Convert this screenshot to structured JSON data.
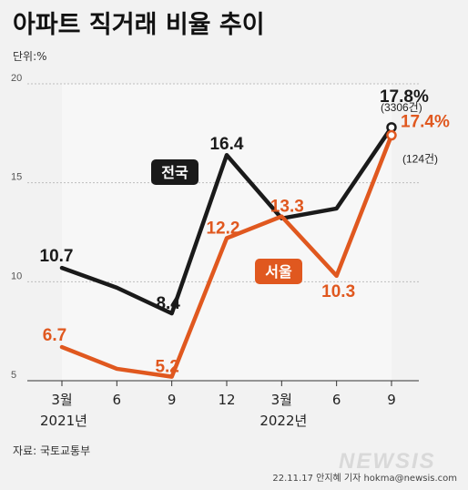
{
  "header": {
    "title": "아파트 직거래 비율 추이",
    "unit": "단위:%"
  },
  "footer": {
    "source": "자료: 국토교통부",
    "credit": "22.11.17 안지혜 기자 hokma@newsis.com",
    "logo": "NEWSIS"
  },
  "colors": {
    "national": "#1a1a1a",
    "seoul": "#e0581f",
    "plot_bg": "#f7f7f7",
    "page_bg": "#f2f2f2"
  },
  "chart_data": {
    "type": "line",
    "title": "아파트 직거래 비율 추이",
    "ylabel": "단위:%",
    "ylim": [
      5,
      20
    ],
    "yticks": [
      5,
      10,
      15,
      20
    ],
    "grid": true,
    "categories": [
      "3월",
      "6",
      "9",
      "12",
      "3월",
      "6",
      "9"
    ],
    "year_labels": [
      "2021년",
      "2022년"
    ],
    "series": [
      {
        "name": "전국",
        "color": "#1a1a1a",
        "values": [
          10.7,
          9.7,
          8.4,
          16.4,
          13.2,
          13.7,
          17.8
        ],
        "labels": [
          "10.7",
          "",
          "8.4",
          "16.4",
          "",
          "",
          "17.8%"
        ],
        "end_note": "(3306건)"
      },
      {
        "name": "서울",
        "color": "#e0581f",
        "values": [
          6.7,
          5.6,
          5.2,
          12.2,
          13.3,
          10.3,
          17.4
        ],
        "labels": [
          "6.7",
          "",
          "5.2",
          "12.2",
          "13.3",
          "10.3",
          "17.4%"
        ],
        "end_note": "(124건)"
      }
    ]
  }
}
